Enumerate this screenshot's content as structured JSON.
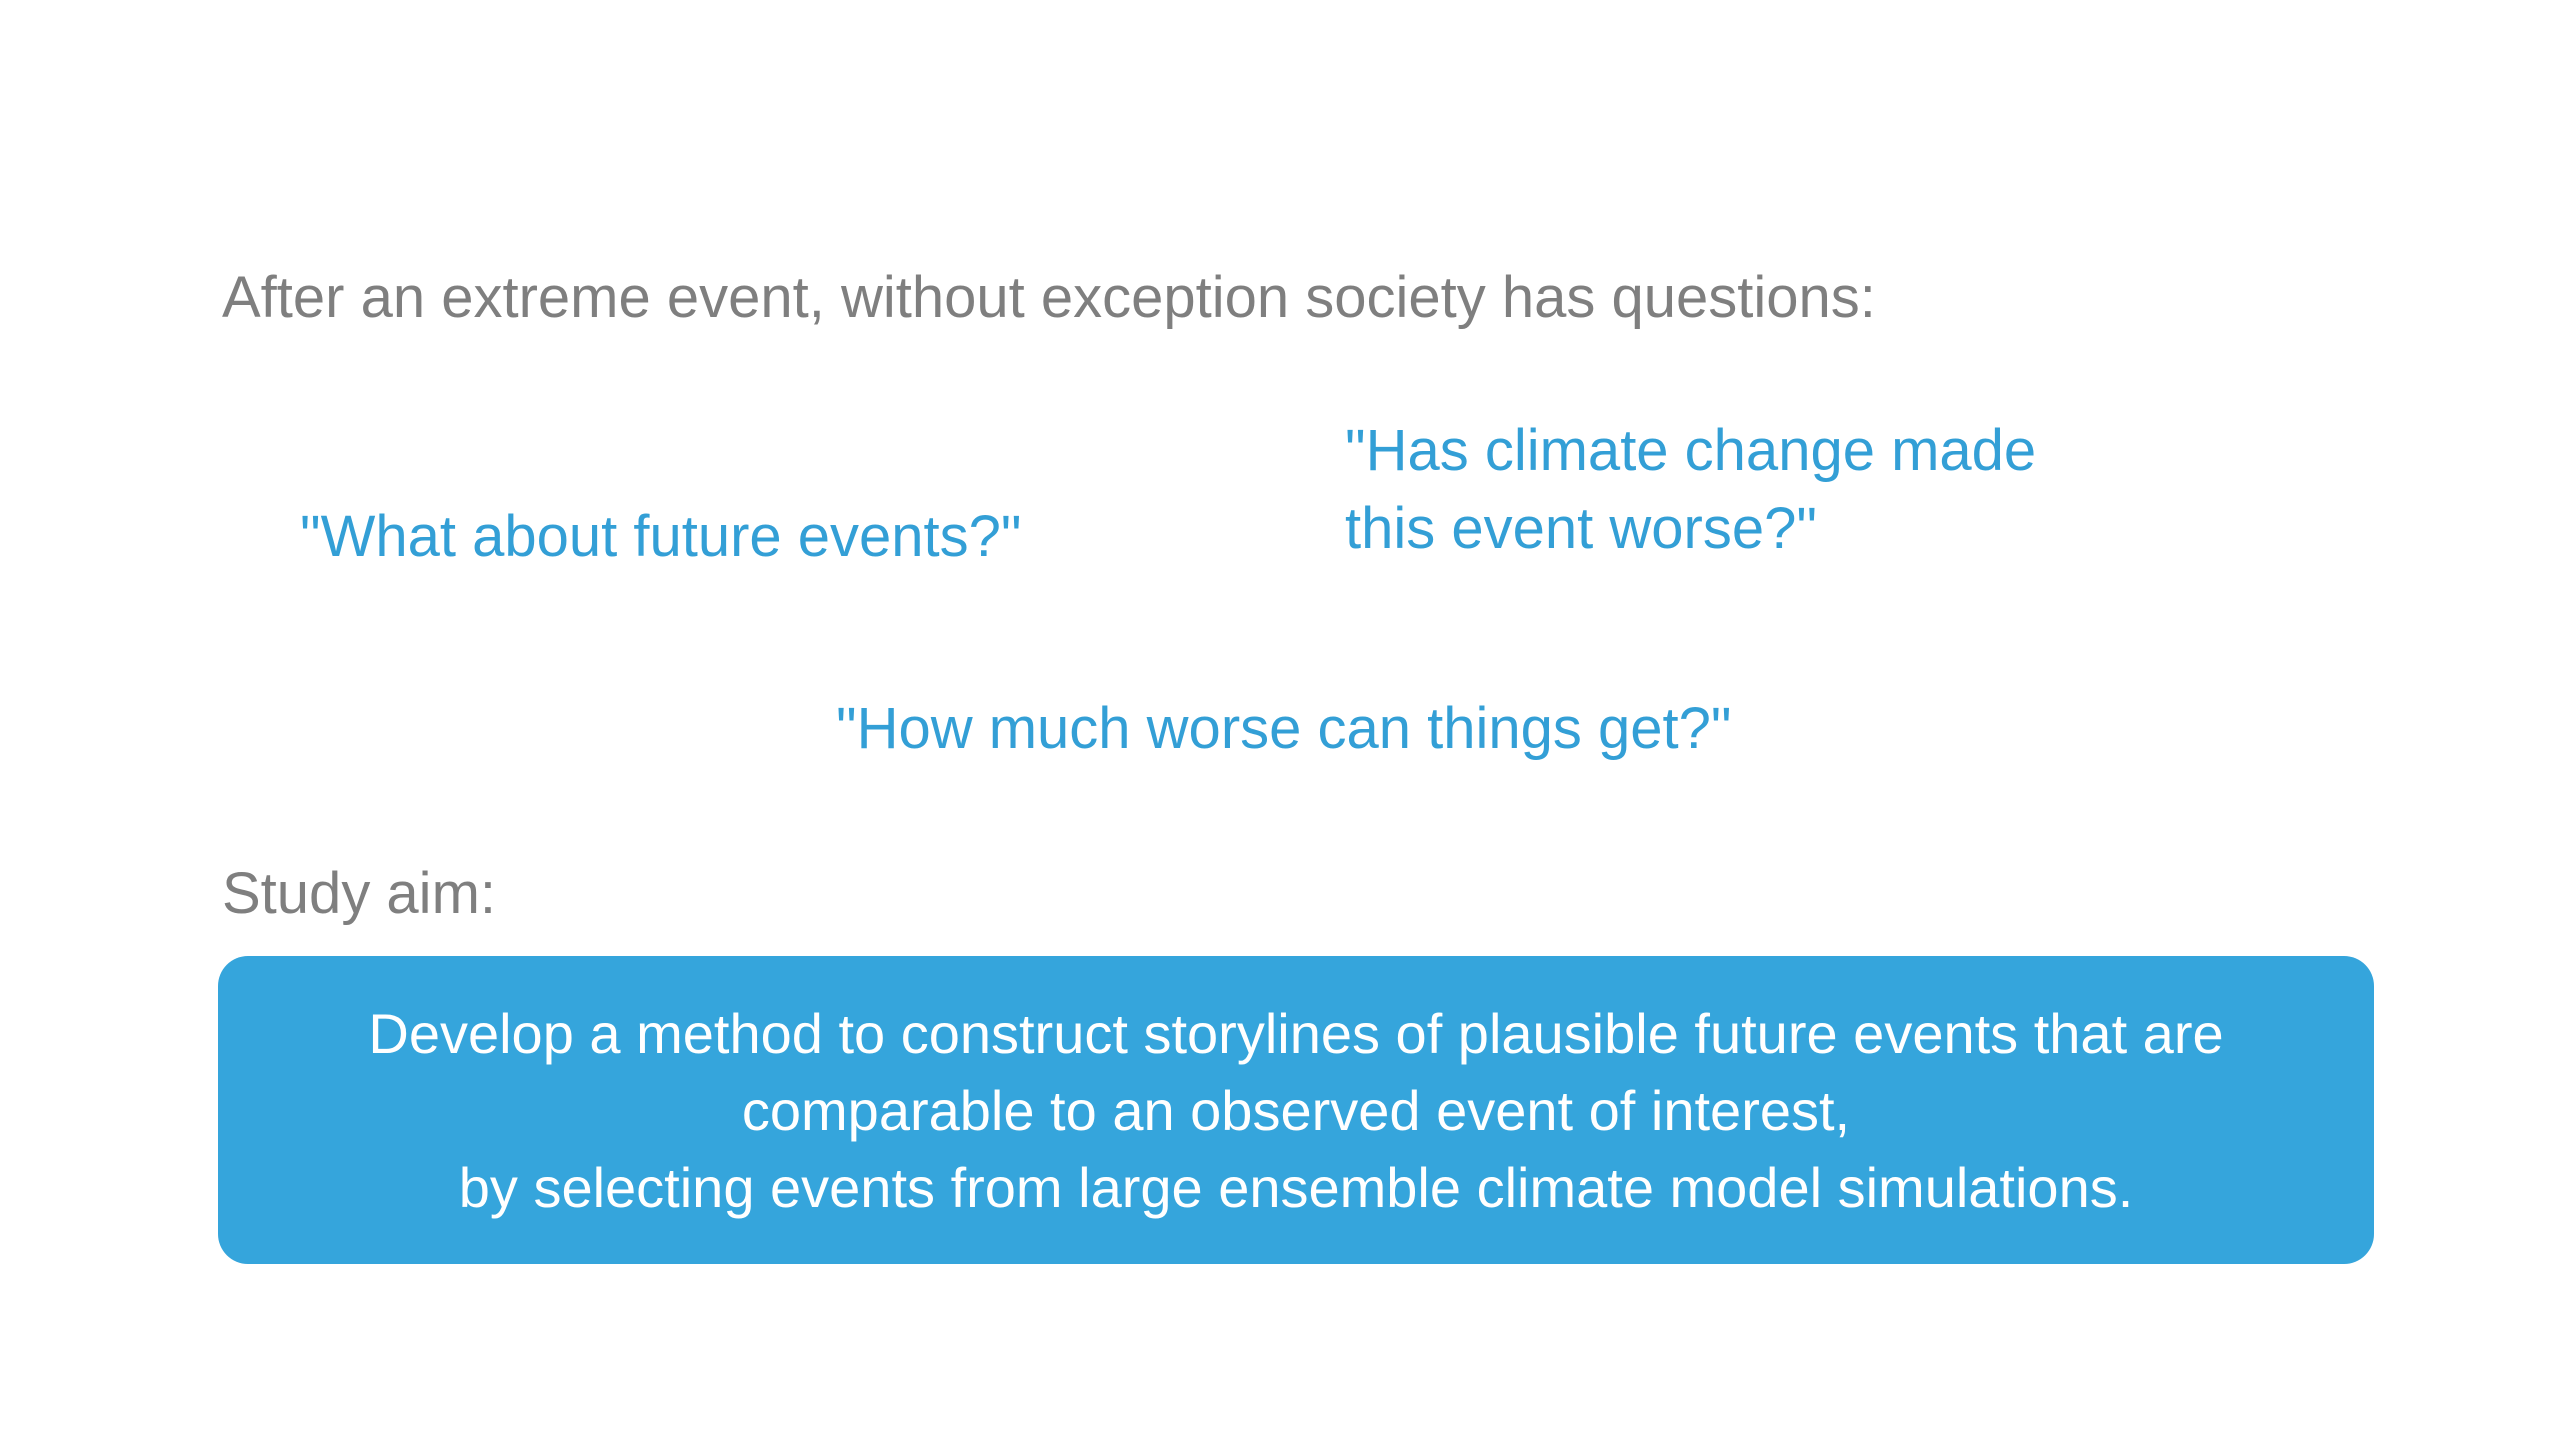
{
  "intro": "After an extreme event, without exception society has questions:",
  "questions": {
    "future": "\"What about future events?\"",
    "climate_lines": [
      "\"Has climate change made",
      "this event worse?\""
    ],
    "worse": "\"How much worse can things get?\""
  },
  "aim": {
    "label": "Study aim:",
    "lines": [
      "Develop a method to construct storylines of plausible future events that are",
      "comparable to an observed event of interest,",
      "by selecting events from large ensemble climate model simulations."
    ]
  },
  "colors": {
    "question_text": "#339fd6",
    "aim_box": "#35a5dc",
    "body_text": "#7f7f7f"
  }
}
